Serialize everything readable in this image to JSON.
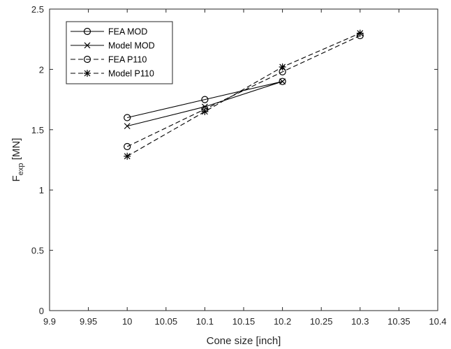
{
  "chart_data": {
    "type": "line",
    "xlabel": "Cone size [inch]",
    "ylabel": {
      "base": "F",
      "subscript": "exp",
      "suffix": " [MN]"
    },
    "xlim": [
      9.9,
      10.4
    ],
    "ylim": [
      0,
      2.5
    ],
    "xticks": [
      "9.9",
      "9.95",
      "10",
      "10.05",
      "10.1",
      "10.15",
      "10.2",
      "10.25",
      "10.3",
      "10.35",
      "10.4"
    ],
    "yticks": [
      "0",
      "0.5",
      "1",
      "1.5",
      "2",
      "2.5"
    ],
    "grid": false,
    "legend_position": "top-left",
    "colors": {
      "line": "#000000",
      "axis": "#262626",
      "background": "#ffffff"
    },
    "series": [
      {
        "name": "FEA MOD",
        "line": "solid",
        "marker": "circle",
        "x": [
          10.0,
          10.1,
          10.2
        ],
        "y": [
          1.6,
          1.75,
          1.9
        ]
      },
      {
        "name": "Model MOD",
        "line": "solid",
        "marker": "x",
        "x": [
          10.0,
          10.1,
          10.2
        ],
        "y": [
          1.53,
          1.69,
          1.9
        ]
      },
      {
        "name": "FEA P110",
        "line": "dashed",
        "marker": "circle",
        "x": [
          10.0,
          10.1,
          10.2,
          10.3
        ],
        "y": [
          1.36,
          1.67,
          1.98,
          2.28
        ]
      },
      {
        "name": "Model P110",
        "line": "dashed",
        "marker": "star",
        "x": [
          10.0,
          10.1,
          10.2,
          10.3
        ],
        "y": [
          1.28,
          1.65,
          2.02,
          2.3
        ]
      }
    ]
  }
}
